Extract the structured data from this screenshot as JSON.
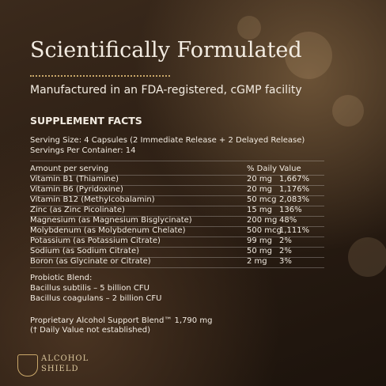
{
  "header": {
    "title": "Scientifically Formulated",
    "subtitle": "Manufactured in an FDA-registered, cGMP facility"
  },
  "facts": {
    "heading": "SUPPLEMENT FACTS",
    "serving_size": "Serving Size: 4 Capsules (2 Immediate Release + 2 Delayed Release)",
    "servings_per_container": "Servings Per Container: 14",
    "table": {
      "columns": [
        "Amount per serving",
        "% Daily Value"
      ],
      "rows": [
        [
          "Vitamin B1 (Thiamine)",
          "20 mg",
          "1,667%"
        ],
        [
          "Vitamin B6 (Pyridoxine)",
          "20 mg",
          "1,176%"
        ],
        [
          "Vitamin B12 (Methylcobalamin)",
          "50 mcg",
          "2,083%"
        ],
        [
          "Zinc (as Zinc Picolinate)",
          "15 mg",
          "136%"
        ],
        [
          "Magnesium (as Magnesium Bisglycinate)",
          "200 mg",
          "48%"
        ],
        [
          "Molybdenum (as Molybdenum Chelate)",
          "500 mcg",
          "1,111%"
        ],
        [
          "Potassium (as Potassium Citrate)",
          "99 mg",
          "2%"
        ],
        [
          "Sodium (as Sodium Citrate)",
          "50 mg",
          "2%"
        ],
        [
          "Boron (as Glycinate or Citrate)",
          "2 mg",
          "3%"
        ]
      ]
    },
    "probiotic": {
      "heading": "Probiotic Blend:",
      "items": [
        "Bacillus subtilis – 5 billion CFU",
        "Bacillus coagulans – 2 billion CFU"
      ]
    },
    "proprietary": {
      "line": "Proprietary Alcohol Support Blend™ 1,790 mg",
      "note": "(† Daily Value not established)"
    }
  },
  "logo": {
    "line1": "ALCOHOL",
    "line2": "SHIELD"
  }
}
